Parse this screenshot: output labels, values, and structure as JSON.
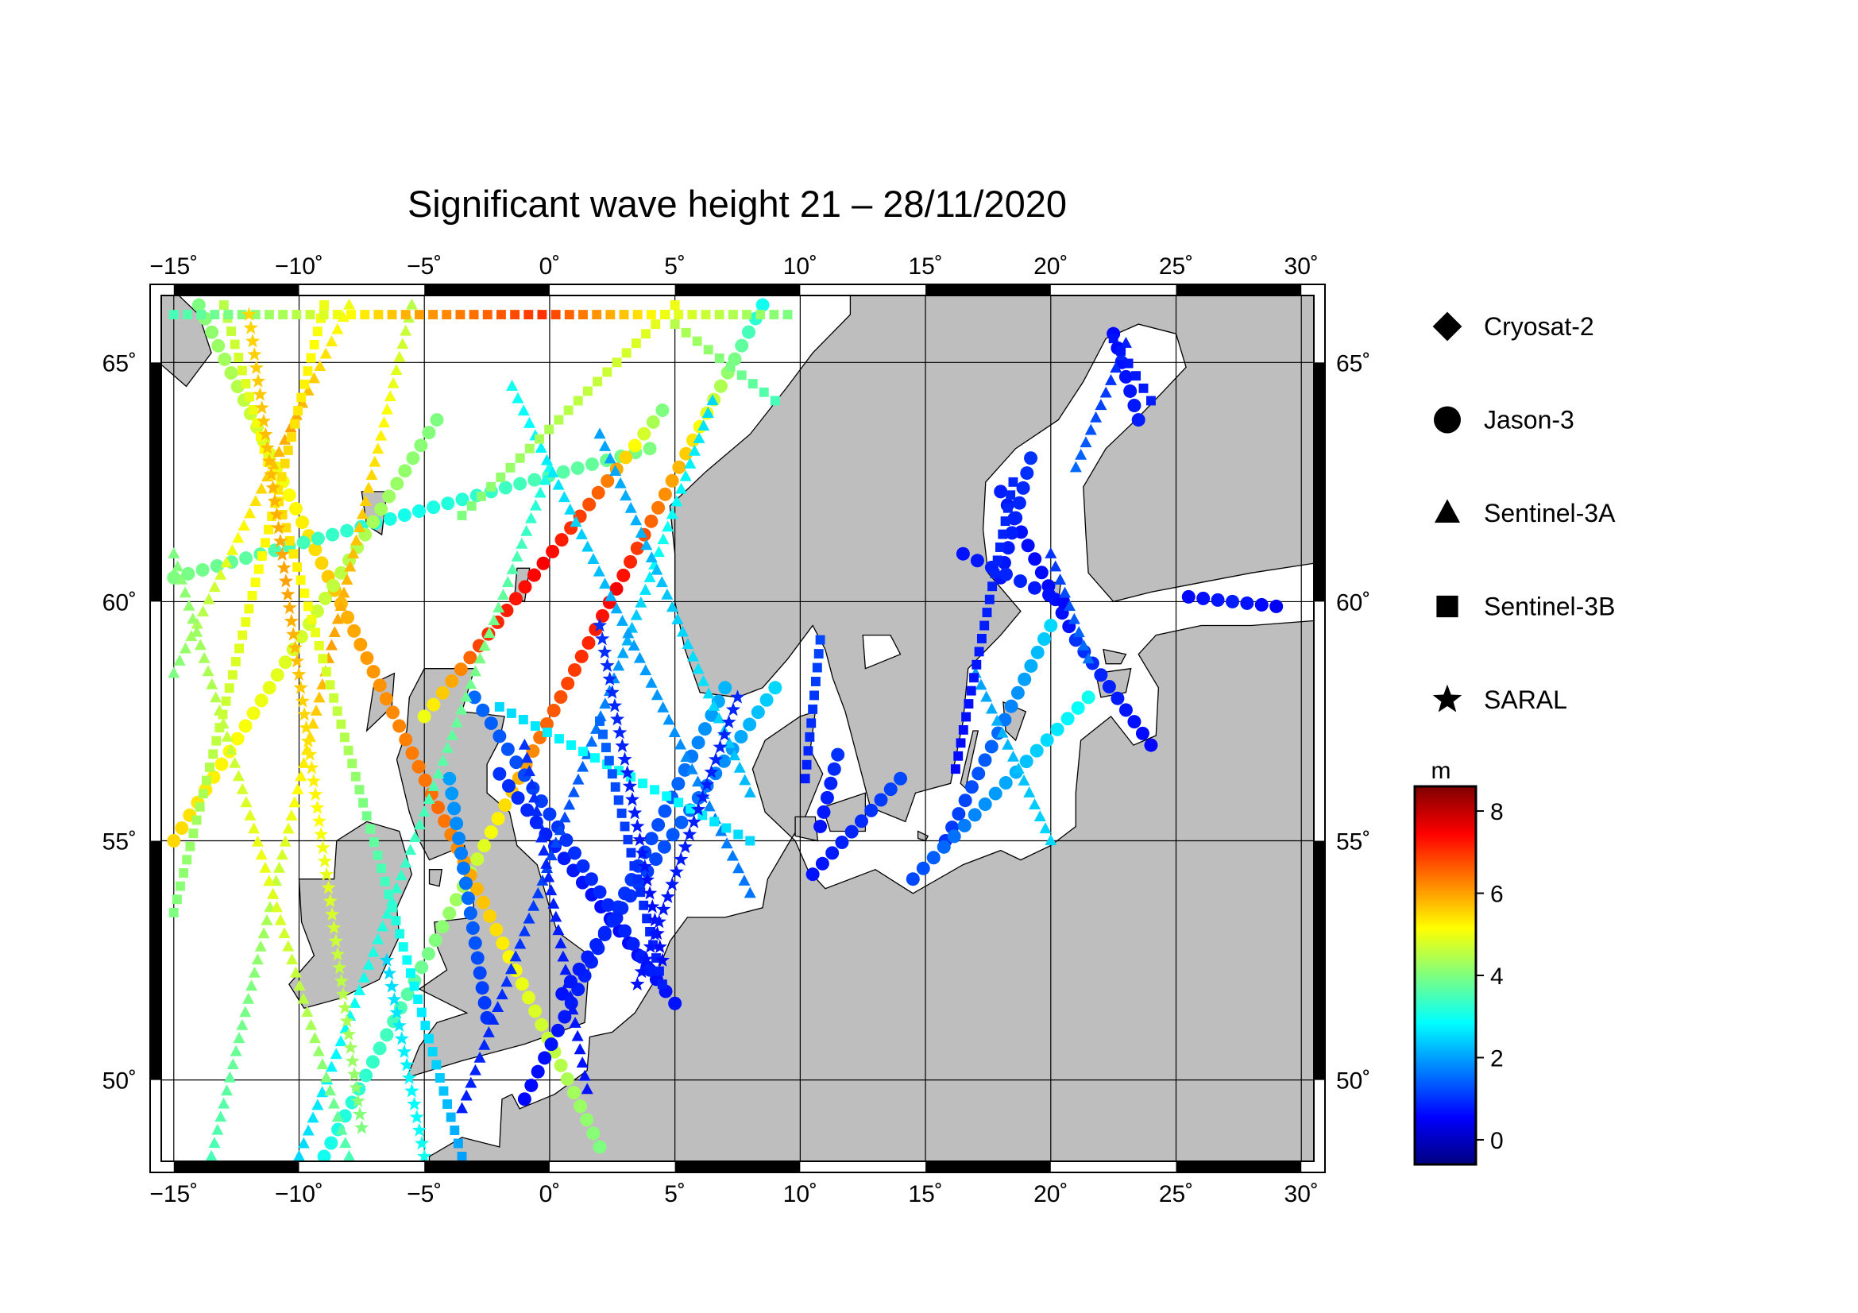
{
  "title": "Significant wave height 21 – 28/11/2020",
  "colors": {
    "land": "#bebebe",
    "sea": "#ffffff",
    "coast": "#000000",
    "grid": "#000000"
  },
  "map": {
    "lon_range": [
      -15.5,
      30.5
    ],
    "lat_range": [
      48.3,
      66.4
    ],
    "lon_ticks": [
      -15,
      -10,
      -5,
      0,
      5,
      10,
      15,
      20,
      25,
      30
    ],
    "lat_ticks": [
      50,
      55,
      60,
      65
    ],
    "lon_tick_labels": [
      "−15˚",
      "−10˚",
      "−5˚",
      "0˚",
      "5˚",
      "10˚",
      "15˚",
      "20˚",
      "25˚",
      "30˚"
    ],
    "lat_tick_labels": [
      "50˚",
      "55˚",
      "60˚",
      "65˚"
    ]
  },
  "legend": {
    "items": [
      {
        "label": "Cryosat-2",
        "symbol": "diamond-icon"
      },
      {
        "label": "Jason-3",
        "symbol": "circle-icon"
      },
      {
        "label": "Sentinel-3A",
        "symbol": "triangle-icon"
      },
      {
        "label": "Sentinel-3B",
        "symbol": "square-icon"
      },
      {
        "label": "SARAL",
        "symbol": "star-icon"
      }
    ]
  },
  "colorbar": {
    "unit": "m",
    "range": [
      -0.6,
      8.6
    ],
    "ticks": [
      0,
      2,
      4,
      6,
      8
    ],
    "tick_labels": [
      "0",
      "2",
      "4",
      "6",
      "8"
    ],
    "stops": [
      "#00007f",
      "#0000ff",
      "#007fff",
      "#00ffff",
      "#7fff7f",
      "#ffff00",
      "#ff7f00",
      "#ff0000",
      "#7f0000"
    ]
  },
  "tracks": [
    {
      "satellite": "Jason-3",
      "from": [
        8.5,
        66.2
      ],
      "to": [
        -9.0,
        48.4
      ],
      "hs": [
        3.0,
        5.5,
        7.5,
        6.5,
        4.5,
        3.5,
        3.0
      ]
    },
    {
      "satellite": "Jason-3",
      "from": [
        -14.0,
        66.2
      ],
      "to": [
        2.0,
        48.6
      ],
      "hs": [
        4.0,
        5.0,
        6.0,
        6.5,
        5.0,
        4.0
      ]
    },
    {
      "satellite": "Jason-3",
      "from": [
        7.0,
        58.2
      ],
      "to": [
        -1.0,
        49.6
      ],
      "hs": [
        2.2,
        1.4,
        1.0,
        0.8,
        0.6
      ]
    },
    {
      "satellite": "Jason-3",
      "from": [
        -15.0,
        60.5
      ],
      "to": [
        4.0,
        63.2
      ],
      "hs": [
        4.0,
        3.5,
        3.0,
        3.5,
        4.0
      ]
    },
    {
      "satellite": "Jason-3",
      "from": [
        -4.5,
        63.8
      ],
      "to": [
        -15.0,
        55.0
      ],
      "hs": [
        4.0,
        4.5,
        5.0,
        5.5
      ]
    },
    {
      "satellite": "Jason-3",
      "from": [
        4.5,
        64.0
      ],
      "to": [
        -5.0,
        57.6
      ],
      "hs": [
        4.0,
        6.5,
        7.5,
        7.0,
        5.0
      ]
    },
    {
      "satellite": "Jason-3",
      "from": [
        -2.0,
        56.4
      ],
      "to": [
        5.0,
        51.6
      ],
      "hs": [
        1.0,
        0.8,
        0.6,
        0.7
      ]
    },
    {
      "satellite": "Jason-3",
      "from": [
        9.0,
        58.2
      ],
      "to": [
        0.5,
        51.8
      ],
      "hs": [
        2.5,
        1.6,
        1.0,
        0.7
      ]
    },
    {
      "satellite": "Jason-3",
      "from": [
        -3.0,
        58.0
      ],
      "to": [
        4.0,
        52.3
      ],
      "hs": [
        1.5,
        1.0,
        0.8
      ]
    },
    {
      "satellite": "Jason-3",
      "from": [
        14.0,
        56.3
      ],
      "to": [
        10.5,
        54.3
      ],
      "hs": [
        1.2,
        0.9,
        0.7
      ]
    },
    {
      "satellite": "Jason-3",
      "from": [
        11.5,
        56.8
      ],
      "to": [
        10.8,
        55.3
      ],
      "hs": [
        1.0,
        0.7
      ]
    },
    {
      "satellite": "Jason-3",
      "from": [
        18.0,
        62.3
      ],
      "to": [
        21.0,
        59.2
      ],
      "hs": [
        0.8,
        0.6,
        0.7
      ]
    },
    {
      "satellite": "Jason-3",
      "from": [
        19.2,
        63.0
      ],
      "to": [
        18.0,
        60.5
      ],
      "hs": [
        1.0,
        0.7
      ]
    },
    {
      "satellite": "Jason-3",
      "from": [
        16.5,
        61.0
      ],
      "to": [
        20.5,
        60.0
      ],
      "hs": [
        0.7,
        0.9,
        0.6
      ]
    },
    {
      "satellite": "Jason-3",
      "from": [
        20.0,
        59.5
      ],
      "to": [
        15.8,
        55.0
      ],
      "hs": [
        2.5,
        1.5,
        1.0
      ]
    },
    {
      "satellite": "Jason-3",
      "from": [
        21.0,
        59.2
      ],
      "to": [
        24.0,
        57.0
      ],
      "hs": [
        1.0,
        0.6
      ]
    },
    {
      "satellite": "Jason-3",
      "from": [
        25.5,
        60.1
      ],
      "to": [
        29.0,
        59.9
      ],
      "hs": [
        0.6,
        0.8,
        0.5
      ]
    },
    {
      "satellite": "Jason-3",
      "from": [
        21.5,
        58.0
      ],
      "to": [
        14.5,
        54.2
      ],
      "hs": [
        3.0,
        2.0,
        1.2
      ]
    },
    {
      "satellite": "Jason-3",
      "from": [
        22.5,
        65.6
      ],
      "to": [
        23.5,
        63.8
      ],
      "hs": [
        0.6,
        0.8
      ]
    },
    {
      "satellite": "Jason-3",
      "from": [
        -4.0,
        56.3
      ],
      "to": [
        -2.5,
        51.3
      ],
      "hs": [
        2.0,
        1.0
      ]
    },
    {
      "satellite": "Sentinel-3A",
      "from": [
        -15.0,
        58.5
      ],
      "to": [
        -8.0,
        66.2
      ],
      "hs": [
        4.0,
        5.0,
        6.0,
        5.0
      ]
    },
    {
      "satellite": "Sentinel-3A",
      "from": [
        -5.5,
        66.2
      ],
      "to": [
        -13.5,
        48.4
      ],
      "hs": [
        4.5,
        5.5,
        6.0,
        5.0,
        4.0,
        3.5
      ]
    },
    {
      "satellite": "Sentinel-3A",
      "from": [
        0.0,
        62.8
      ],
      "to": [
        -10.0,
        48.4
      ],
      "hs": [
        3.0,
        4.0,
        3.5,
        3.0,
        2.5
      ]
    },
    {
      "satellite": "Sentinel-3A",
      "from": [
        6.5,
        64.2
      ],
      "to": [
        -3.5,
        49.4
      ],
      "hs": [
        2.5,
        3.0,
        1.8,
        1.2,
        1.0,
        0.8
      ]
    },
    {
      "satellite": "Sentinel-3A",
      "from": [
        -1.5,
        64.5
      ],
      "to": [
        8.0,
        53.9
      ],
      "hs": [
        3.0,
        2.5,
        2.0,
        1.8,
        1.6
      ]
    },
    {
      "satellite": "Sentinel-3A",
      "from": [
        -15.0,
        61.0
      ],
      "to": [
        -8.0,
        48.4
      ],
      "hs": [
        4.0,
        4.5,
        5.0,
        4.5,
        3.5
      ]
    },
    {
      "satellite": "Sentinel-3A",
      "from": [
        2.0,
        63.5
      ],
      "to": [
        8.0,
        56.0
      ],
      "hs": [
        2.0,
        2.2,
        2.6,
        2.2
      ]
    },
    {
      "satellite": "Sentinel-3A",
      "from": [
        -1.0,
        57.0
      ],
      "to": [
        1.5,
        49.8
      ],
      "hs": [
        1.0,
        0.8,
        0.7
      ]
    },
    {
      "satellite": "Sentinel-3A",
      "from": [
        17.0,
        58.5
      ],
      "to": [
        20.0,
        55.0
      ],
      "hs": [
        2.0,
        2.5
      ]
    },
    {
      "satellite": "Sentinel-3A",
      "from": [
        23.0,
        65.4
      ],
      "to": [
        21.0,
        62.8
      ],
      "hs": [
        0.8,
        1.5
      ]
    },
    {
      "satellite": "Sentinel-3A",
      "from": [
        20.0,
        61.0
      ],
      "to": [
        21.5,
        58.8
      ],
      "hs": [
        1.0,
        1.6
      ]
    },
    {
      "satellite": "Sentinel-3B",
      "from": [
        -13.0,
        66.2
      ],
      "to": [
        -3.5,
        48.4
      ],
      "hs": [
        4.5,
        5.5,
        4.5,
        3.0,
        2.0
      ]
    },
    {
      "satellite": "Sentinel-3B",
      "from": [
        -15.0,
        53.5
      ],
      "to": [
        -9.0,
        66.2
      ],
      "hs": [
        4.0,
        4.5,
        5.0,
        5.5,
        5.0
      ]
    },
    {
      "satellite": "Sentinel-3B",
      "from": [
        -3.5,
        61.8
      ],
      "to": [
        5.0,
        66.2
      ],
      "hs": [
        4.0,
        4.5,
        5.0
      ]
    },
    {
      "satellite": "Sentinel-3B",
      "from": [
        5.0,
        65.8
      ],
      "to": [
        9.0,
        64.2
      ],
      "hs": [
        4.5,
        3.5
      ]
    },
    {
      "satellite": "Sentinel-3B",
      "from": [
        -15.0,
        66.0
      ],
      "to": [
        9.5,
        66.0
      ],
      "hs": [
        3.5,
        4.5,
        6.0,
        7.0,
        5.0,
        4.0
      ]
    },
    {
      "satellite": "Sentinel-3B",
      "from": [
        -2.0,
        57.8
      ],
      "to": [
        8.0,
        55.0
      ],
      "hs": [
        2.5,
        3.0,
        2.5
      ]
    },
    {
      "satellite": "Sentinel-3B",
      "from": [
        10.8,
        59.2
      ],
      "to": [
        10.2,
        56.3
      ],
      "hs": [
        1.2,
        0.8
      ]
    },
    {
      "satellite": "Sentinel-3B",
      "from": [
        18.5,
        62.5
      ],
      "to": [
        16.2,
        56.5
      ],
      "hs": [
        0.9,
        0.8,
        0.6
      ]
    },
    {
      "satellite": "Sentinel-3B",
      "from": [
        22.5,
        65.5
      ],
      "to": [
        24.0,
        64.2
      ],
      "hs": [
        0.7,
        0.8
      ]
    },
    {
      "satellite": "Sentinel-3B",
      "from": [
        2.0,
        57.5
      ],
      "to": [
        4.5,
        52.0
      ],
      "hs": [
        1.5,
        1.0,
        0.8
      ]
    },
    {
      "satellite": "SARAL",
      "from": [
        -12.0,
        66.0
      ],
      "to": [
        -7.5,
        49.0
      ],
      "hs": [
        5.5,
        6.0,
        5.0,
        4.0
      ]
    },
    {
      "satellite": "SARAL",
      "from": [
        2.0,
        59.5
      ],
      "to": [
        4.5,
        52.5
      ],
      "hs": [
        1.0,
        0.8,
        0.6
      ]
    },
    {
      "satellite": "SARAL",
      "from": [
        -6.5,
        52.5
      ],
      "to": [
        -5.0,
        48.4
      ],
      "hs": [
        2.5,
        3.0
      ]
    },
    {
      "satellite": "SARAL",
      "from": [
        7.5,
        58.0
      ],
      "to": [
        3.5,
        52.0
      ],
      "hs": [
        0.9,
        0.7
      ]
    }
  ]
}
